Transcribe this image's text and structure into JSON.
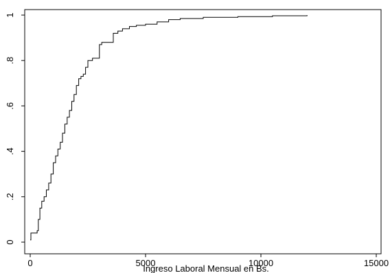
{
  "chart_data": {
    "type": "line",
    "title": "",
    "xlabel": "Ingreso Laboral Mensual en Bs.",
    "ylabel": "",
    "xlim": [
      0,
      15000
    ],
    "ylim": [
      0,
      1
    ],
    "x_ticks": [
      {
        "value": 0,
        "label": "0"
      },
      {
        "value": 5000,
        "label": "5000"
      },
      {
        "value": 10000,
        "label": "10000"
      },
      {
        "value": 15000,
        "label": "15000"
      }
    ],
    "y_ticks": [
      {
        "value": 0,
        "label": "0"
      },
      {
        "value": 0.2,
        "label": ".2"
      },
      {
        "value": 0.4,
        "label": ".4"
      },
      {
        "value": 0.6,
        "label": ".6"
      },
      {
        "value": 0.8,
        "label": ".8"
      },
      {
        "value": 1,
        "label": "1"
      }
    ],
    "grid": false,
    "legend": "none",
    "series": [
      {
        "line_color": "#000000",
        "step": true,
        "x": [
          0,
          30,
          300,
          350,
          420,
          500,
          600,
          700,
          800,
          900,
          1000,
          1100,
          1200,
          1300,
          1400,
          1500,
          1600,
          1700,
          1800,
          1900,
          2000,
          2100,
          2200,
          2300,
          2400,
          2500,
          2700,
          3000,
          3100,
          3400,
          3600,
          3800,
          4000,
          4300,
          4600,
          5000,
          5500,
          6000,
          6500,
          7500,
          9000,
          10500,
          12000
        ],
        "y": [
          0.01,
          0.04,
          0.05,
          0.1,
          0.15,
          0.18,
          0.2,
          0.23,
          0.26,
          0.3,
          0.35,
          0.38,
          0.41,
          0.44,
          0.48,
          0.52,
          0.55,
          0.58,
          0.62,
          0.65,
          0.69,
          0.72,
          0.73,
          0.74,
          0.77,
          0.8,
          0.81,
          0.87,
          0.88,
          0.88,
          0.92,
          0.93,
          0.94,
          0.95,
          0.955,
          0.96,
          0.97,
          0.98,
          0.985,
          0.99,
          0.993,
          0.997,
          1.0
        ]
      }
    ]
  }
}
